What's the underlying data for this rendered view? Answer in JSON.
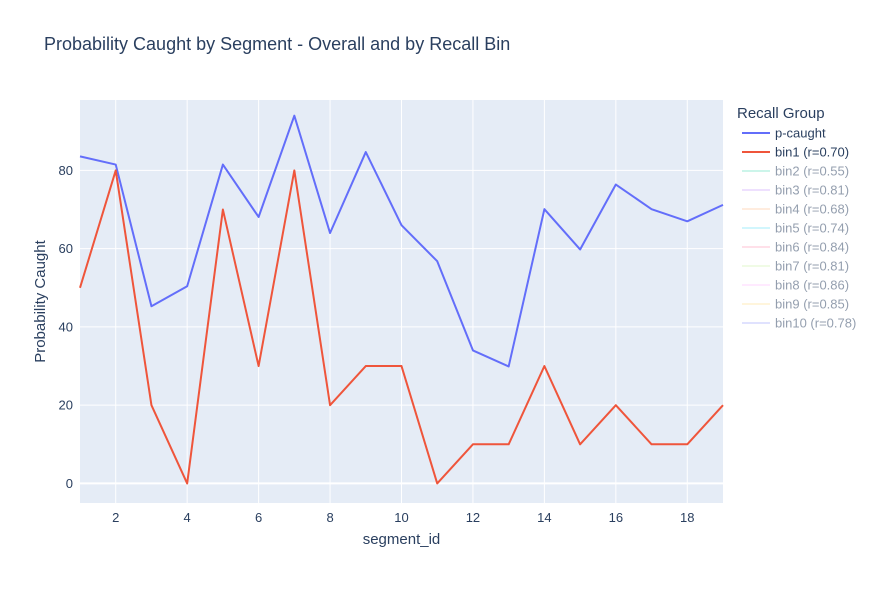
{
  "chart_data": {
    "type": "line",
    "title": "Probability Caught by Segment - Overall and by Recall Bin",
    "xlabel": "segment_id",
    "ylabel": "Probability Caught",
    "xlim": [
      1,
      19
    ],
    "ylim": [
      -5,
      98
    ],
    "xticks": [
      2,
      4,
      6,
      8,
      10,
      12,
      14,
      16,
      18
    ],
    "yticks": [
      0,
      20,
      40,
      60,
      80
    ],
    "grid": true,
    "legend": {
      "title": "Recall Group",
      "placement": "right"
    },
    "x": [
      1,
      2,
      3,
      4,
      5,
      6,
      7,
      8,
      9,
      10,
      11,
      12,
      13,
      14,
      15,
      16,
      18,
      17,
      19
    ],
    "series": [
      {
        "name": "p-caught",
        "color": "#636efa",
        "opacity": 1,
        "visible": true,
        "x": [
          1,
          2,
          3,
          4,
          5,
          6,
          7,
          8,
          9,
          10,
          11,
          12,
          13,
          14,
          15,
          16,
          17,
          18,
          19
        ],
        "values": [
          83.6,
          81.5,
          45.3,
          50.4,
          81.5,
          68.1,
          94,
          64,
          84.7,
          66,
          56.8,
          34,
          29.9,
          70.1,
          59.8,
          76.4,
          70.1,
          67,
          71.2
        ]
      },
      {
        "name": "bin1 (r=0.70)",
        "color": "#ef553b",
        "opacity": 1,
        "visible": true,
        "x": [
          1,
          2,
          3,
          4,
          5,
          6,
          7,
          8,
          9,
          10,
          11,
          12,
          13,
          14,
          15,
          16,
          17,
          18,
          19
        ],
        "values": [
          50,
          80,
          20,
          0,
          70,
          30,
          80,
          20,
          30,
          30,
          0,
          10,
          10,
          30,
          10,
          20,
          10,
          10,
          20
        ]
      },
      {
        "name": "bin2 (r=0.55)",
        "color": "#00cc96",
        "opacity": 0.4,
        "visible": false
      },
      {
        "name": "bin3 (r=0.81)",
        "color": "#ab63fa",
        "opacity": 0.4,
        "visible": false
      },
      {
        "name": "bin4 (r=0.68)",
        "color": "#ffa15a",
        "opacity": 0.4,
        "visible": false
      },
      {
        "name": "bin5 (r=0.74)",
        "color": "#19d3f3",
        "opacity": 0.4,
        "visible": false
      },
      {
        "name": "bin6 (r=0.84)",
        "color": "#ff6692",
        "opacity": 0.4,
        "visible": false
      },
      {
        "name": "bin7 (r=0.81)",
        "color": "#b6e880",
        "opacity": 0.4,
        "visible": false
      },
      {
        "name": "bin8 (r=0.86)",
        "color": "#ff97ff",
        "opacity": 0.4,
        "visible": false
      },
      {
        "name": "bin9 (r=0.85)",
        "color": "#fecb52",
        "opacity": 0.4,
        "visible": false
      },
      {
        "name": "bin10 (r=0.78)",
        "color": "#636efa",
        "opacity": 0.4,
        "visible": false
      }
    ]
  }
}
